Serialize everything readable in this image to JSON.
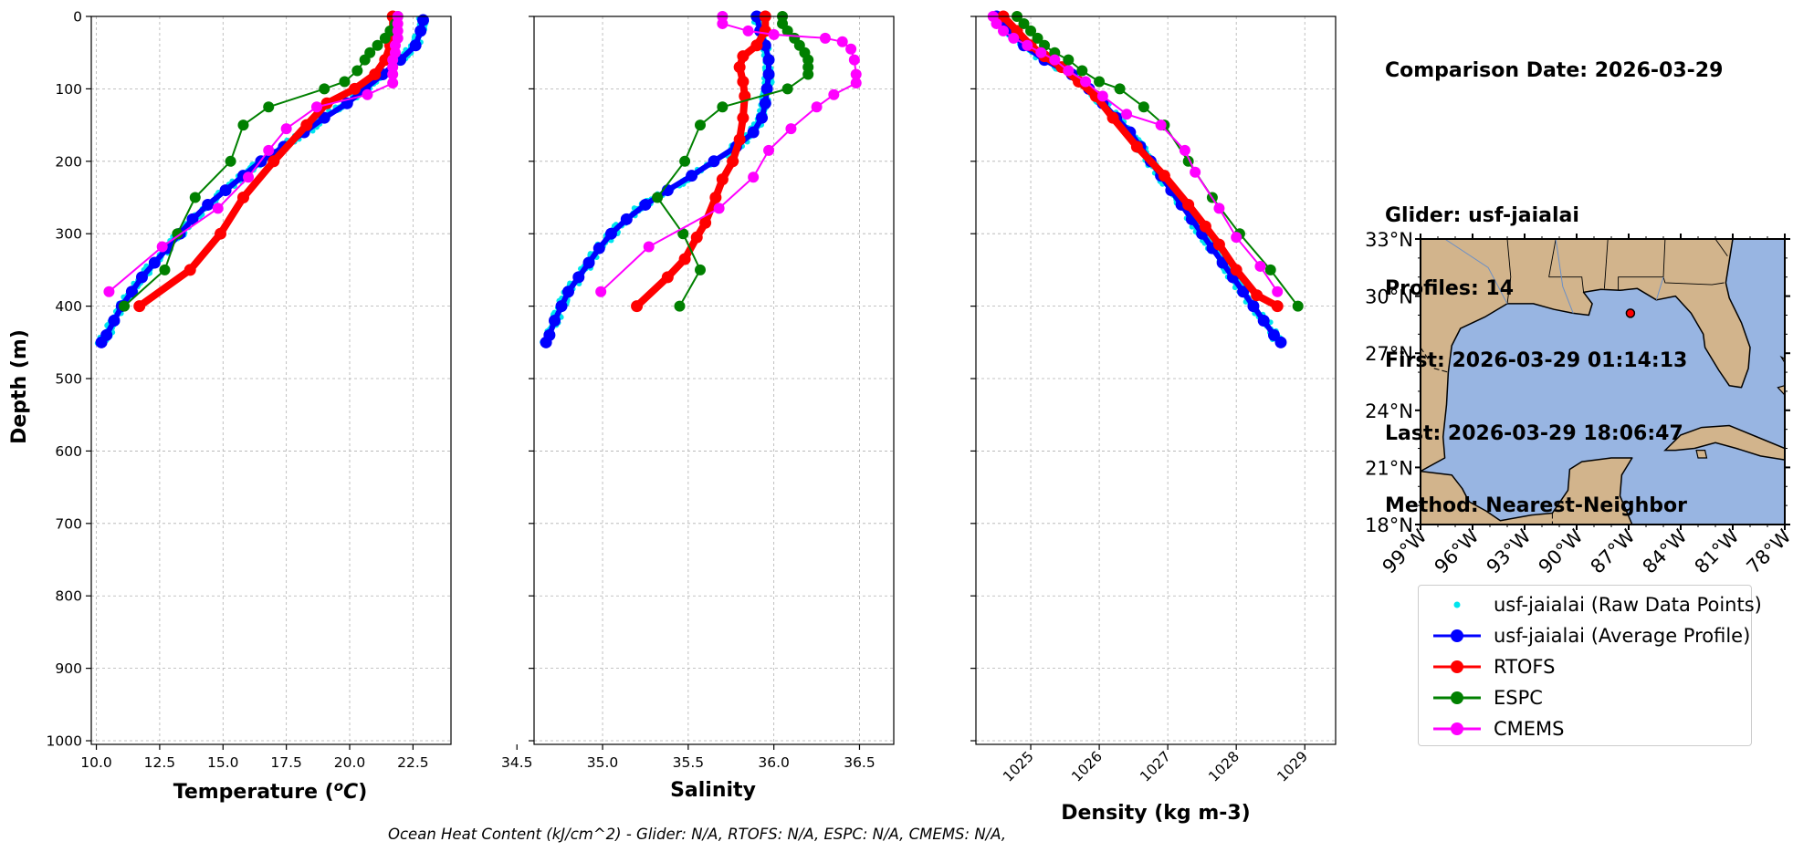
{
  "info": {
    "comparison_date": "Comparison Date: 2026-03-29",
    "glider": "Glider: usf-jaialai",
    "profiles": "Profiles: 14",
    "first": "First: 2026-03-29 01:14:13",
    "last": "Last: 2026-03-29 18:06:47",
    "method": "Method: Nearest-Neighbor"
  },
  "footer": "Ocean Heat Content (kJ/cm^2) - Glider: N/A,  RTOFS: N/A,  ESPC: N/A,  CMEMS: N/A,",
  "colors": {
    "raw": "#00e5ee",
    "glider": "#0000ff",
    "rtofs": "#ff0000",
    "espc": "#008000",
    "cmems": "#ff00ff",
    "land": "#d2b48c",
    "water": "#98b5e2",
    "grid": "#b0b0b0"
  },
  "legend": [
    {
      "key": "raw",
      "label": "usf-jaialai (Raw Data Points)"
    },
    {
      "key": "glider",
      "label": "usf-jaialai (Average Profile)"
    },
    {
      "key": "rtofs",
      "label": "RTOFS"
    },
    {
      "key": "espc",
      "label": "ESPC"
    },
    {
      "key": "cmems",
      "label": "CMEMS"
    }
  ],
  "chart_data": [
    {
      "type": "line",
      "xlabel": "Temperature (°C)",
      "ylabel": "Depth (m)",
      "xlim": [
        9.8,
        24.0
      ],
      "ylim": [
        1005,
        0
      ],
      "xticks": [
        10.0,
        12.5,
        15.0,
        17.5,
        20.0,
        22.5
      ],
      "xtick_labels": [
        "10.0",
        "12.5",
        "15.0",
        "17.5",
        "20.0",
        "22.5"
      ],
      "yticks": [
        0,
        100,
        200,
        300,
        400,
        500,
        600,
        700,
        800,
        900,
        1000
      ],
      "grid": true,
      "series": [
        {
          "key": "glider",
          "style": "avg",
          "points": [
            [
              22.9,
              5
            ],
            [
              22.8,
              20
            ],
            [
              22.6,
              40
            ],
            [
              22.0,
              60
            ],
            [
              21.3,
              80
            ],
            [
              20.6,
              100
            ],
            [
              19.9,
              120
            ],
            [
              19.0,
              140
            ],
            [
              18.2,
              160
            ],
            [
              17.4,
              180
            ],
            [
              16.5,
              200
            ],
            [
              15.8,
              220
            ],
            [
              15.1,
              240
            ],
            [
              14.4,
              260
            ],
            [
              13.8,
              280
            ],
            [
              13.3,
              300
            ],
            [
              12.8,
              320
            ],
            [
              12.3,
              340
            ],
            [
              11.8,
              360
            ],
            [
              11.4,
              380
            ],
            [
              11.0,
              400
            ],
            [
              10.7,
              420
            ],
            [
              10.4,
              440
            ],
            [
              10.2,
              450
            ]
          ]
        },
        {
          "key": "rtofs",
          "style": "thick",
          "points": [
            [
              21.7,
              0
            ],
            [
              21.7,
              20
            ],
            [
              21.6,
              40
            ],
            [
              21.4,
              60
            ],
            [
              21.0,
              80
            ],
            [
              20.2,
              100
            ],
            [
              19.1,
              120
            ],
            [
              18.3,
              150
            ],
            [
              17.0,
              200
            ],
            [
              15.8,
              250
            ],
            [
              14.9,
              300
            ],
            [
              13.7,
              350
            ],
            [
              11.7,
              400
            ]
          ]
        },
        {
          "key": "espc",
          "style": "marker",
          "points": [
            [
              21.9,
              0
            ],
            [
              21.8,
              10
            ],
            [
              21.6,
              20
            ],
            [
              21.4,
              30
            ],
            [
              21.1,
              40
            ],
            [
              20.8,
              50
            ],
            [
              20.6,
              60
            ],
            [
              20.3,
              75
            ],
            [
              19.8,
              90
            ],
            [
              19.0,
              100
            ],
            [
              16.8,
              125
            ],
            [
              15.8,
              150
            ],
            [
              15.3,
              200
            ],
            [
              13.9,
              250
            ],
            [
              13.2,
              300
            ],
            [
              12.7,
              350
            ],
            [
              11.1,
              400
            ]
          ]
        },
        {
          "key": "cmems",
          "style": "marker",
          "points": [
            [
              21.9,
              0
            ],
            [
              21.9,
              10
            ],
            [
              21.9,
              20
            ],
            [
              21.9,
              30
            ],
            [
              21.8,
              40
            ],
            [
              21.8,
              50
            ],
            [
              21.7,
              60
            ],
            [
              21.7,
              70
            ],
            [
              21.7,
              80
            ],
            [
              21.7,
              92
            ],
            [
              20.7,
              108
            ],
            [
              18.7,
              125
            ],
            [
              17.5,
              155
            ],
            [
              16.8,
              185
            ],
            [
              16.0,
              222
            ],
            [
              14.8,
              265
            ],
            [
              12.6,
              318
            ],
            [
              10.5,
              380
            ]
          ]
        }
      ]
    },
    {
      "type": "line",
      "xlabel": "Salinity",
      "xlim": [
        34.6,
        36.7
      ],
      "ylim": [
        1005,
        0
      ],
      "xticks": [
        34.5,
        35.0,
        35.5,
        36.0,
        36.5
      ],
      "xtick_labels": [
        "34.5",
        "35.0",
        "35.5",
        "36.0",
        "36.5"
      ],
      "yticks": [
        0,
        100,
        200,
        300,
        400,
        500,
        600,
        700,
        800,
        900,
        1000
      ],
      "grid": true,
      "series": [
        {
          "key": "glider",
          "style": "avg",
          "points": [
            [
              35.9,
              0
            ],
            [
              35.92,
              20
            ],
            [
              35.95,
              40
            ],
            [
              35.97,
              60
            ],
            [
              35.97,
              80
            ],
            [
              35.96,
              100
            ],
            [
              35.95,
              120
            ],
            [
              35.93,
              140
            ],
            [
              35.88,
              160
            ],
            [
              35.78,
              180
            ],
            [
              35.65,
              200
            ],
            [
              35.52,
              220
            ],
            [
              35.38,
              240
            ],
            [
              35.25,
              260
            ],
            [
              35.14,
              280
            ],
            [
              35.05,
              300
            ],
            [
              34.98,
              320
            ],
            [
              34.92,
              340
            ],
            [
              34.86,
              360
            ],
            [
              34.8,
              380
            ],
            [
              34.76,
              400
            ],
            [
              34.72,
              420
            ],
            [
              34.69,
              440
            ],
            [
              34.67,
              450
            ]
          ]
        },
        {
          "key": "rtofs",
          "style": "thick",
          "points": [
            [
              35.95,
              0
            ],
            [
              35.95,
              20
            ],
            [
              35.9,
              40
            ],
            [
              35.82,
              55
            ],
            [
              35.8,
              70
            ],
            [
              35.82,
              90
            ],
            [
              35.83,
              110
            ],
            [
              35.82,
              140
            ],
            [
              35.8,
              170
            ],
            [
              35.76,
              200
            ],
            [
              35.7,
              225
            ],
            [
              35.66,
              250
            ],
            [
              35.6,
              285
            ],
            [
              35.55,
              305
            ],
            [
              35.48,
              335
            ],
            [
              35.38,
              360
            ],
            [
              35.2,
              400
            ]
          ]
        },
        {
          "key": "espc",
          "style": "marker",
          "points": [
            [
              36.05,
              0
            ],
            [
              36.05,
              10
            ],
            [
              36.08,
              20
            ],
            [
              36.12,
              30
            ],
            [
              36.15,
              40
            ],
            [
              36.18,
              50
            ],
            [
              36.2,
              60
            ],
            [
              36.2,
              70
            ],
            [
              36.2,
              80
            ],
            [
              36.08,
              100
            ],
            [
              35.7,
              125
            ],
            [
              35.57,
              150
            ],
            [
              35.48,
              200
            ],
            [
              35.32,
              250
            ],
            [
              35.47,
              300
            ],
            [
              35.57,
              350
            ],
            [
              35.45,
              400
            ]
          ]
        },
        {
          "key": "cmems",
          "style": "marker",
          "points": [
            [
              35.7,
              0
            ],
            [
              35.7,
              10
            ],
            [
              35.85,
              20
            ],
            [
              36.0,
              25
            ],
            [
              36.3,
              30
            ],
            [
              36.4,
              35
            ],
            [
              36.45,
              45
            ],
            [
              36.47,
              60
            ],
            [
              36.48,
              80
            ],
            [
              36.48,
              92
            ],
            [
              36.35,
              108
            ],
            [
              36.25,
              125
            ],
            [
              36.1,
              155
            ],
            [
              35.97,
              185
            ],
            [
              35.88,
              222
            ],
            [
              35.68,
              265
            ],
            [
              35.27,
              318
            ],
            [
              34.99,
              380
            ]
          ]
        }
      ]
    },
    {
      "type": "line",
      "xlabel": "Density (kg m-3)",
      "xlim": [
        1024.2,
        1029.45
      ],
      "ylim": [
        1005,
        0
      ],
      "xticks": [
        1025,
        1026,
        1027,
        1028,
        1029
      ],
      "xtick_labels": [
        "1025",
        "1026",
        "1027",
        "1028",
        "1029"
      ],
      "yticks": [
        0,
        100,
        200,
        300,
        400,
        500,
        600,
        700,
        800,
        900,
        1000
      ],
      "grid": true,
      "series": [
        {
          "key": "glider",
          "style": "avg",
          "points": [
            [
              1024.5,
              0
            ],
            [
              1024.7,
              20
            ],
            [
              1024.9,
              40
            ],
            [
              1025.2,
              60
            ],
            [
              1025.6,
              80
            ],
            [
              1025.85,
              100
            ],
            [
              1026.05,
              120
            ],
            [
              1026.25,
              140
            ],
            [
              1026.45,
              160
            ],
            [
              1026.6,
              180
            ],
            [
              1026.75,
              200
            ],
            [
              1026.9,
              220
            ],
            [
              1027.05,
              240
            ],
            [
              1027.2,
              260
            ],
            [
              1027.35,
              280
            ],
            [
              1027.5,
              300
            ],
            [
              1027.65,
              320
            ],
            [
              1027.8,
              340
            ],
            [
              1027.95,
              360
            ],
            [
              1028.1,
              380
            ],
            [
              1028.25,
              400
            ],
            [
              1028.4,
              420
            ],
            [
              1028.55,
              440
            ],
            [
              1028.65,
              450
            ]
          ]
        },
        {
          "key": "rtofs",
          "style": "thick",
          "points": [
            [
              1024.6,
              0
            ],
            [
              1024.8,
              20
            ],
            [
              1025.0,
              40
            ],
            [
              1025.2,
              55
            ],
            [
              1025.45,
              70
            ],
            [
              1025.7,
              90
            ],
            [
              1025.95,
              110
            ],
            [
              1026.2,
              140
            ],
            [
              1026.55,
              180
            ],
            [
              1026.95,
              220
            ],
            [
              1027.3,
              260
            ],
            [
              1027.55,
              290
            ],
            [
              1027.75,
              315
            ],
            [
              1028.0,
              350
            ],
            [
              1028.3,
              385
            ],
            [
              1028.6,
              400
            ]
          ]
        },
        {
          "key": "espc",
          "style": "marker",
          "points": [
            [
              1024.8,
              0
            ],
            [
              1024.9,
              10
            ],
            [
              1025.0,
              20
            ],
            [
              1025.1,
              30
            ],
            [
              1025.2,
              40
            ],
            [
              1025.35,
              50
            ],
            [
              1025.55,
              60
            ],
            [
              1025.75,
              75
            ],
            [
              1026.0,
              90
            ],
            [
              1026.3,
              100
            ],
            [
              1026.65,
              125
            ],
            [
              1026.95,
              150
            ],
            [
              1027.3,
              200
            ],
            [
              1027.65,
              250
            ],
            [
              1028.05,
              300
            ],
            [
              1028.5,
              350
            ],
            [
              1028.9,
              400
            ]
          ]
        },
        {
          "key": "cmems",
          "style": "marker",
          "points": [
            [
              1024.45,
              0
            ],
            [
              1024.5,
              10
            ],
            [
              1024.6,
              20
            ],
            [
              1024.75,
              30
            ],
            [
              1024.95,
              40
            ],
            [
              1025.15,
              50
            ],
            [
              1025.35,
              60
            ],
            [
              1025.55,
              75
            ],
            [
              1025.8,
              90
            ],
            [
              1026.05,
              110
            ],
            [
              1026.4,
              135
            ],
            [
              1026.9,
              150
            ],
            [
              1027.25,
              185
            ],
            [
              1027.4,
              215
            ],
            [
              1027.75,
              265
            ],
            [
              1028.0,
              305
            ],
            [
              1028.35,
              345
            ],
            [
              1028.6,
              380
            ]
          ]
        }
      ]
    }
  ],
  "map": {
    "lat_labels": [
      "33°N",
      "30°N",
      "27°N",
      "24°N",
      "21°N",
      "18°N"
    ],
    "lon_labels": [
      "99°W",
      "96°W",
      "93°W",
      "90°W",
      "87°W",
      "84°W",
      "81°W",
      "78°W"
    ],
    "lat_range": [
      18,
      33
    ],
    "lon_range": [
      -99,
      -78
    ],
    "glider_position": {
      "lon": -86.9,
      "lat": 29.1
    }
  }
}
